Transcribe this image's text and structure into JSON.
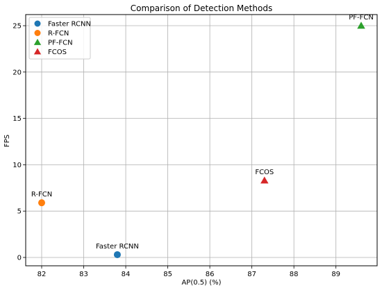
{
  "chart_data": {
    "type": "scatter",
    "title": "Comparison of Detection Methods",
    "xlabel": "AP(0.5) (%)",
    "ylabel": "FPS",
    "xlim": [
      81.62,
      89.98
    ],
    "ylim": [
      -0.9,
      26.2
    ],
    "xticks": [
      82,
      83,
      84,
      85,
      86,
      87,
      88,
      89
    ],
    "yticks": [
      0,
      5,
      10,
      15,
      20,
      25
    ],
    "grid": true,
    "legend_position": "top-left",
    "points": [
      {
        "label": "Faster RCNN",
        "x": 83.8,
        "y": 0.3,
        "marker": "circle",
        "color": "#1f77b4"
      },
      {
        "label": "R-FCN",
        "x": 82.0,
        "y": 5.9,
        "marker": "circle",
        "color": "#ff7f0e"
      },
      {
        "label": "PF-FCN",
        "x": 89.6,
        "y": 25.0,
        "marker": "triangle",
        "color": "#2ca02c"
      },
      {
        "label": "FCOS",
        "x": 87.3,
        "y": 8.3,
        "marker": "triangle",
        "color": "#d62728"
      }
    ]
  }
}
